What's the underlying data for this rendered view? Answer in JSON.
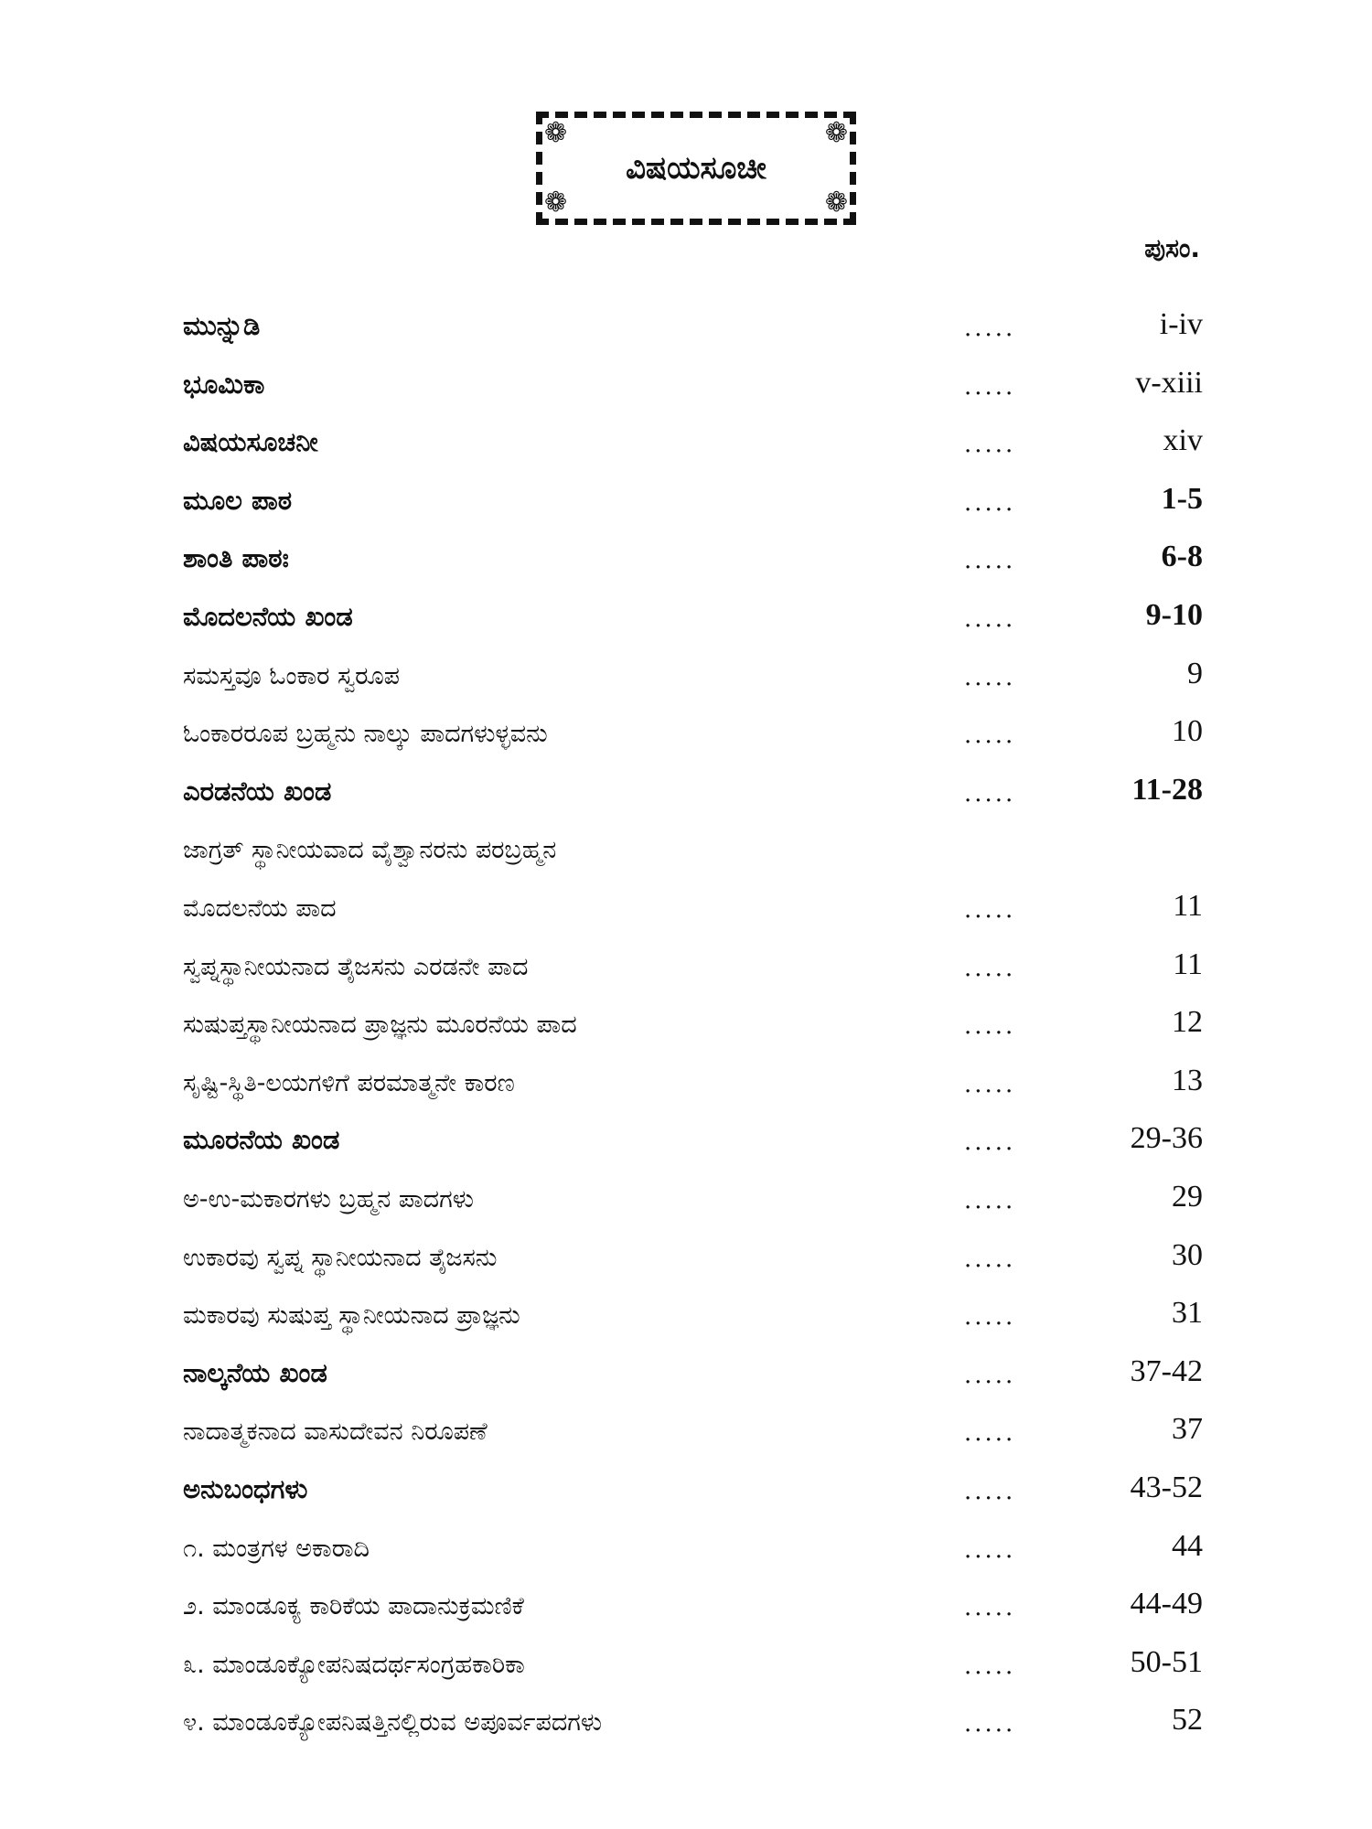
{
  "title": "ವಿಷಯಸೂಚೀ",
  "page_column_header": "ಪುಸಂ.",
  "leader": ".....",
  "entries": [
    {
      "label": "ಮುನ್ನುಡಿ",
      "page": "i-iv",
      "heading": true,
      "page_bold": false
    },
    {
      "label": "ಭೂಮಿಕಾ",
      "page": "v-xiii",
      "heading": true,
      "page_bold": false
    },
    {
      "label": "ವಿಷಯಸೂಚನೀ",
      "page": "xiv",
      "heading": true,
      "page_bold": false
    },
    {
      "label": "ಮೂಲ ಪಾಠ",
      "page": "1-5",
      "heading": true,
      "page_bold": true
    },
    {
      "label": "ಶಾಂತಿ ಪಾಠಃ",
      "page": "6-8",
      "heading": true,
      "page_bold": true
    },
    {
      "label": "ಮೊದಲನೆಯ ಖಂಡ",
      "page": "9-10",
      "heading": true,
      "page_bold": true
    },
    {
      "label": "ಸಮಸ್ತವೂ ಓಂಕಾರ ಸ್ವರೂಪ",
      "page": "9",
      "heading": false,
      "page_bold": false
    },
    {
      "label": "ಓಂಕಾರರೂಪ ಬ್ರಹ್ಮನು ನಾಲ್ಕು ಪಾದಗಳುಳ್ಳವನು",
      "page": "10",
      "heading": false,
      "page_bold": false
    },
    {
      "label": "ಎರಡನೆಯ ಖಂಡ",
      "page": "11-28",
      "heading": true,
      "page_bold": true
    },
    {
      "label": "ಜಾಗ್ರತ್ ಸ್ಥಾನೀಯವಾದ ವೈಶ್ವಾನರನು ಪರಬ್ರಹ್ಮನ",
      "page": "",
      "heading": false,
      "page_bold": false
    },
    {
      "label": "ಮೊದಲನೆಯ ಪಾದ",
      "page": "11",
      "heading": false,
      "page_bold": false
    },
    {
      "label": "ಸ್ವಪ್ನಸ್ಥಾನೀಯನಾದ ತೈಜಸನು ಎರಡನೇ ಪಾದ",
      "page": "11",
      "heading": false,
      "page_bold": false
    },
    {
      "label": "ಸುಷುಪ್ತಸ್ಥಾನೀಯನಾದ ಪ್ರಾಜ್ಞನು ಮೂರನೆಯ ಪಾದ",
      "page": "12",
      "heading": false,
      "page_bold": false
    },
    {
      "label": "ಸೃಷ್ಟಿ-ಸ್ಥಿತಿ-ಲಯಗಳಿಗೆ ಪರಮಾತ್ಮನೇ ಕಾರಣ",
      "page": "13",
      "heading": false,
      "page_bold": false
    },
    {
      "label": "ಮೂರನೆಯ  ಖಂಡ",
      "page": "29-36",
      "heading": true,
      "page_bold": false
    },
    {
      "label": "ಅ-ಉ-ಮಕಾರಗಳು ಬ್ರಹ್ಮನ ಪಾದಗಳು",
      "page": "29",
      "heading": false,
      "page_bold": false
    },
    {
      "label": "ಉಕಾರವು ಸ್ವಪ್ನ ಸ್ಥಾನೀಯನಾದ ತೈಜಸನು",
      "page": "30",
      "heading": false,
      "page_bold": false
    },
    {
      "label": "ಮಕಾರವು ಸುಷುಪ್ತ ಸ್ಥಾನೀಯನಾದ ಪ್ರಾಜ್ಞನು",
      "page": "31",
      "heading": false,
      "page_bold": false
    },
    {
      "label": "ನಾಲ್ಕನೆಯ  ಖಂಡ",
      "page": "37-42",
      "heading": true,
      "page_bold": false
    },
    {
      "label": "ನಾದಾತ್ಮಕನಾದ ವಾಸುದೇವನ ನಿರೂಪಣೆ",
      "page": "37",
      "heading": false,
      "page_bold": false
    },
    {
      "label": "ಅನುಬಂಧಗಳು",
      "page": "43-52",
      "heading": true,
      "page_bold": false
    },
    {
      "label": "೧. ಮಂತ್ರಗಳ ಅಕಾರಾದಿ",
      "page": "44",
      "heading": false,
      "page_bold": false
    },
    {
      "label": "೨. ಮಾಂಡೂಕ್ಯ ಕಾರಿಕೆಯ ಪಾದಾನುಕ್ರಮಣಿಕೆ",
      "page": "44-49",
      "heading": false,
      "page_bold": false
    },
    {
      "label": "೩. ಮಾಂಡೂಕ್ಯೋಪನಿಷದರ್ಥಸಂಗ್ರಹಕಾರಿಕಾ",
      "page": "50-51",
      "heading": false,
      "page_bold": false
    },
    {
      "label": "೪. ಮಾಂಡೂಕ್ಯೋಪನಿಷತ್ತಿನಲ್ಲಿರುವ ಅಪೂರ್ವಪದಗಳು",
      "page": "52",
      "heading": false,
      "page_bold": false
    }
  ]
}
